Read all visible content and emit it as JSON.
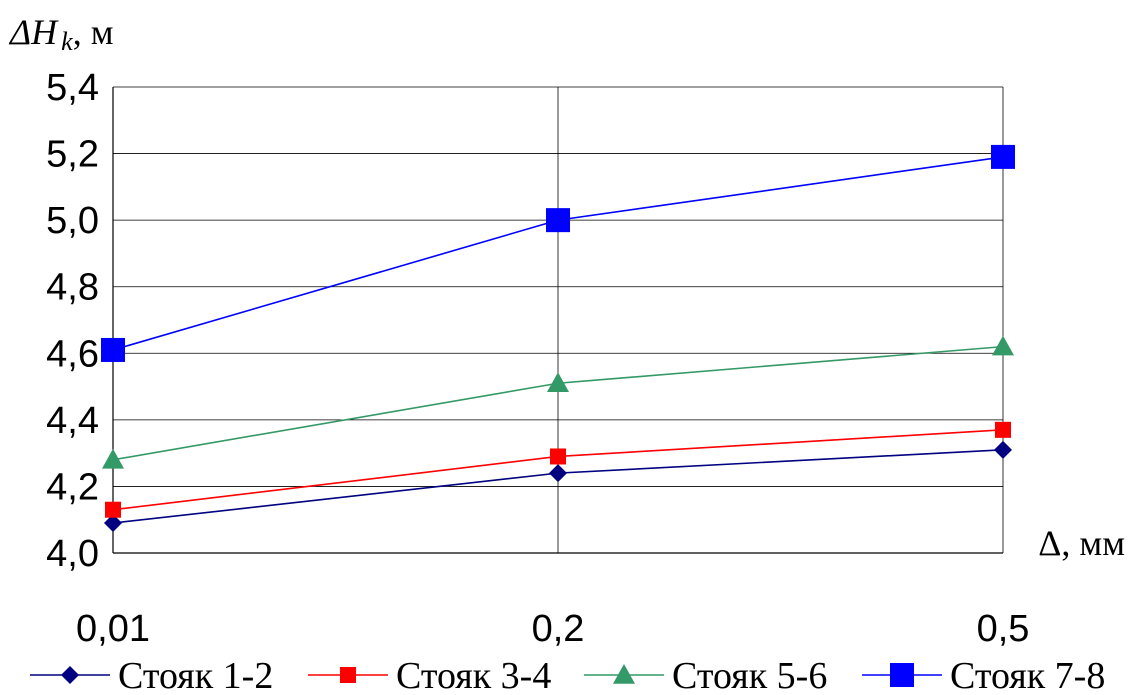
{
  "chart_data": {
    "type": "line",
    "ylabel_var": "ΔH",
    "ylabel_sub": "k",
    "ylabel_unit": ", м",
    "xlabel": "Δ, мм",
    "categories": [
      "0,01",
      "0,2",
      "0,5"
    ],
    "ylim": [
      4.0,
      5.4
    ],
    "yticks": [
      "4,0",
      "4,2",
      "4,4",
      "4,6",
      "4,8",
      "5,0",
      "5,2",
      "5,4"
    ],
    "grid": true,
    "legend_position": "bottom",
    "series": [
      {
        "name": "Стояк 1-2",
        "values": [
          4.09,
          4.24,
          4.31
        ],
        "color": "#000080",
        "marker": "diamond"
      },
      {
        "name": "Стояк 3-4",
        "values": [
          4.13,
          4.29,
          4.37
        ],
        "color": "#ff0000",
        "marker": "square-small"
      },
      {
        "name": "Стояк 5-6",
        "values": [
          4.28,
          4.51,
          4.62
        ],
        "color": "#339966",
        "marker": "triangle"
      },
      {
        "name": "Стояк 7-8",
        "values": [
          4.61,
          5.0,
          5.19
        ],
        "color": "#0000ff",
        "marker": "square-large"
      }
    ]
  }
}
